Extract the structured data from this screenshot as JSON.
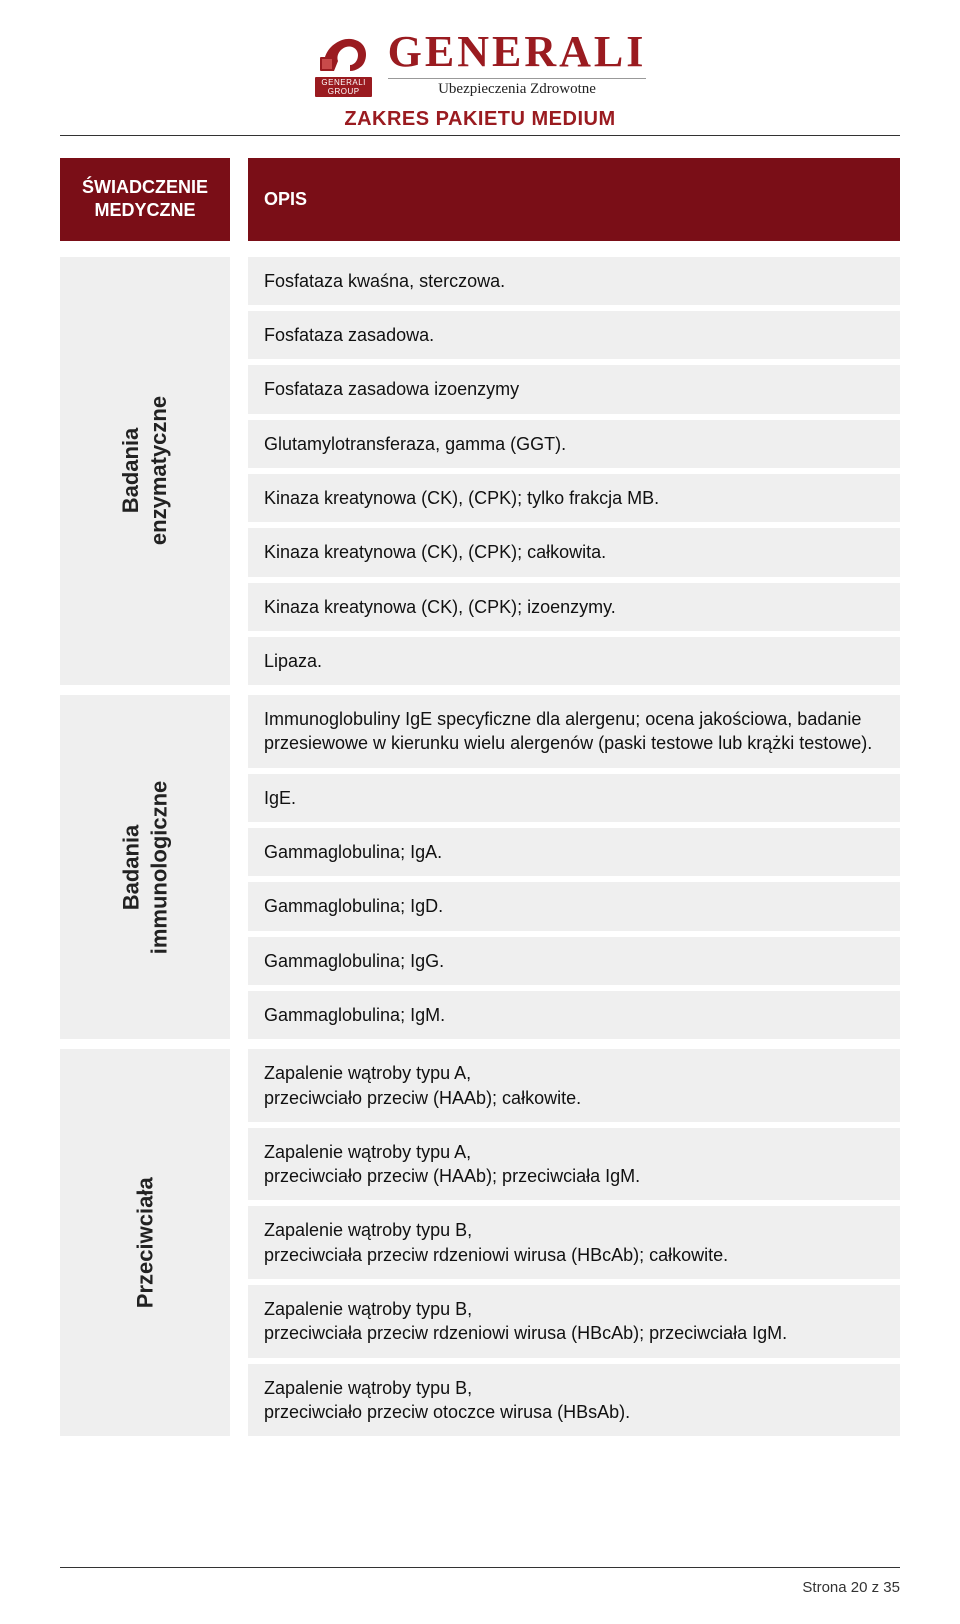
{
  "brand": {
    "name": "GENERALI",
    "group": "GENERALI",
    "group_sub": "GROUP",
    "tagline": "Ubezpieczenia Zdrowotne",
    "brand_color": "#9a1b20"
  },
  "doc_title": "ZAKRES PAKIETU MEDIUM",
  "table_header": {
    "left": "ŚWIADCZENIE MEDYCZNE",
    "right": "OPIS",
    "bg": "#7a0e17",
    "fg": "#ffffff"
  },
  "colors": {
    "row_bg": "#efefef",
    "text": "#111111",
    "rule": "#333333"
  },
  "fontsize": {
    "body": 18,
    "side_label": 22,
    "header": 18,
    "title": 20
  },
  "sections": [
    {
      "label": "Badania\nenzymatyczne",
      "items": [
        "Fosfataza kwaśna, sterczowa.",
        "Fosfataza zasadowa.",
        "Fosfataza zasadowa izoenzymy",
        "Glutamylotransferaza, gamma (GGT).",
        "Kinaza kreatynowa (CK), (CPK); tylko frakcja MB.",
        "Kinaza kreatynowa (CK), (CPK); całkowita.",
        "Kinaza kreatynowa (CK), (CPK); izoenzymy.",
        "Lipaza."
      ]
    },
    {
      "label": "Badania\nimmunologiczne",
      "items": [
        "Immunoglobuliny IgE specyficzne dla alergenu; ocena jakościowa, badanie przesiewowe w kierunku wielu alergenów (paski testowe lub krążki testowe).",
        "IgE.",
        "Gammaglobulina; IgA.",
        "Gammaglobulina; IgD.",
        "Gammaglobulina; IgG.",
        "Gammaglobulina; IgM."
      ]
    },
    {
      "label": "Przeciwciała",
      "items": [
        "Zapalenie wątroby typu A,\nprzeciwciało przeciw (HAAb); całkowite.",
        "Zapalenie wątroby typu A,\nprzeciwciało przeciw (HAAb); przeciwciała IgM.",
        "Zapalenie wątroby typu B,\nprzeciwciała przeciw rdzeniowi wirusa (HBcAb); całkowite.",
        "Zapalenie wątroby typu B,\nprzeciwciała przeciw rdzeniowi wirusa (HBcAb); przeciwciała IgM.",
        "Zapalenie wątroby typu B,\nprzeciwciało przeciw otoczce wirusa (HBsAb)."
      ]
    }
  ],
  "footer": {
    "page": "Strona 20 z 35"
  }
}
